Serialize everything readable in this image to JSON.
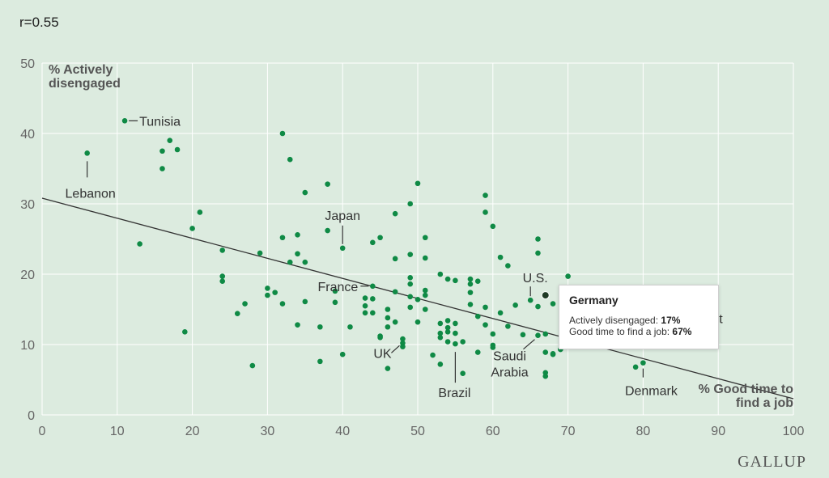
{
  "header": {
    "r_label": "r=0.55"
  },
  "brand": "GALLUP",
  "colors": {
    "background": "#dcebdf",
    "grid": "#ffffff",
    "dot": "#0f8a45",
    "highlight_dot": "#1e3a24",
    "trend": "#333333",
    "text": "#333333",
    "axis_title": "#555555"
  },
  "chart_data": {
    "type": "scatter",
    "xlabel": "% Good time to find a job",
    "ylabel": "% Actively disengaged",
    "xlim": [
      0,
      100
    ],
    "ylim": [
      0,
      50
    ],
    "x_ticks": [
      "0",
      "10",
      "20",
      "30",
      "40",
      "50",
      "60",
      "70",
      "80",
      "90",
      "100"
    ],
    "y_ticks": [
      "0",
      "10",
      "20",
      "30",
      "40",
      "50"
    ],
    "grid": true,
    "trendline": {
      "x": [
        0,
        100
      ],
      "y": [
        30.8,
        2.3
      ]
    },
    "points": [
      [
        6,
        37.2
      ],
      [
        11,
        41.8
      ],
      [
        13,
        24.3
      ],
      [
        16,
        37.5
      ],
      [
        16,
        35
      ],
      [
        17,
        39
      ],
      [
        18,
        37.7
      ],
      [
        19,
        11.8
      ],
      [
        20,
        26.5
      ],
      [
        21,
        28.8
      ],
      [
        24,
        23.4
      ],
      [
        24,
        19.7
      ],
      [
        24,
        19
      ],
      [
        26,
        14.4
      ],
      [
        27,
        15.8
      ],
      [
        28,
        7
      ],
      [
        29,
        23
      ],
      [
        30,
        18
      ],
      [
        30,
        17
      ],
      [
        31,
        17.4
      ],
      [
        32,
        40
      ],
      [
        32,
        25.2
      ],
      [
        32,
        15.8
      ],
      [
        33,
        36.3
      ],
      [
        33,
        21.7
      ],
      [
        34,
        25.6
      ],
      [
        34,
        22.9
      ],
      [
        34,
        12.8
      ],
      [
        35,
        31.6
      ],
      [
        35,
        21.7
      ],
      [
        35,
        16.1
      ],
      [
        37,
        12.5
      ],
      [
        37,
        7.6
      ],
      [
        38,
        32.8
      ],
      [
        38,
        26.2
      ],
      [
        39,
        17.6
      ],
      [
        39,
        16
      ],
      [
        40,
        23.7
      ],
      [
        40,
        8.6
      ],
      [
        41,
        12.5
      ],
      [
        43,
        16.6
      ],
      [
        43,
        15.5
      ],
      [
        43,
        14.5
      ],
      [
        44,
        24.5
      ],
      [
        44,
        18.3
      ],
      [
        44,
        16.5
      ],
      [
        44,
        14.5
      ],
      [
        45,
        25.2
      ],
      [
        45,
        11.2
      ],
      [
        45,
        11
      ],
      [
        46,
        15
      ],
      [
        46,
        13.8
      ],
      [
        46,
        12.5
      ],
      [
        46,
        6.6
      ],
      [
        47,
        28.6
      ],
      [
        47,
        22.2
      ],
      [
        47,
        17.5
      ],
      [
        47,
        13.2
      ],
      [
        48,
        10.8
      ],
      [
        48,
        10.2
      ],
      [
        48,
        9.7
      ],
      [
        49,
        30
      ],
      [
        49,
        22.8
      ],
      [
        49,
        19.5
      ],
      [
        49,
        18.6
      ],
      [
        49,
        16.8
      ],
      [
        49,
        15.3
      ],
      [
        50,
        32.9
      ],
      [
        50,
        16.4
      ],
      [
        50,
        13.2
      ],
      [
        51,
        25.2
      ],
      [
        51,
        22.3
      ],
      [
        51,
        17.7
      ],
      [
        51,
        17
      ],
      [
        51,
        15
      ],
      [
        52,
        8.5
      ],
      [
        53,
        20
      ],
      [
        53,
        13
      ],
      [
        53,
        11.6
      ],
      [
        53,
        11
      ],
      [
        53,
        7.2
      ],
      [
        54,
        19.3
      ],
      [
        54,
        13.4
      ],
      [
        54,
        12.4
      ],
      [
        54,
        11.8
      ],
      [
        54,
        10.4
      ],
      [
        55,
        19.1
      ],
      [
        55,
        13
      ],
      [
        55,
        11.6
      ],
      [
        55,
        10.1
      ],
      [
        56,
        10.4
      ],
      [
        56,
        5.9
      ],
      [
        57,
        19.3
      ],
      [
        57,
        18.6
      ],
      [
        57,
        17.4
      ],
      [
        57,
        15.7
      ],
      [
        58,
        19
      ],
      [
        58,
        14
      ],
      [
        58,
        8.9
      ],
      [
        59,
        31.2
      ],
      [
        59,
        28.8
      ],
      [
        59,
        15.3
      ],
      [
        59,
        12.8
      ],
      [
        60,
        26.8
      ],
      [
        60,
        11.5
      ],
      [
        60,
        9.9
      ],
      [
        60,
        9.6
      ],
      [
        61,
        22.4
      ],
      [
        61,
        14.5
      ],
      [
        62,
        21.2
      ],
      [
        62,
        12.6
      ],
      [
        63,
        15.6
      ],
      [
        64,
        11.4
      ],
      [
        65,
        16.3
      ],
      [
        66,
        25
      ],
      [
        66,
        23
      ],
      [
        66,
        15.4
      ],
      [
        66,
        11.3
      ],
      [
        67,
        11.5
      ],
      [
        67,
        8.9
      ],
      [
        67,
        6
      ],
      [
        67,
        5.5
      ],
      [
        68,
        15.8
      ],
      [
        68,
        8.7
      ],
      [
        68,
        8.6
      ],
      [
        69,
        9.3
      ],
      [
        70,
        19.7
      ],
      [
        79,
        6.8
      ],
      [
        80,
        7.4
      ]
    ],
    "highlight_point": {
      "label": "Germany",
      "x": 67,
      "y": 17
    },
    "annotations": [
      {
        "text": "Tunisia",
        "x": 11,
        "y": 41.8
      },
      {
        "text": "Lebanon",
        "x": 6,
        "y": 37.2
      },
      {
        "text": "Japan",
        "x": 40,
        "y": 23.7
      },
      {
        "text": "France",
        "x": 44,
        "y": 18.3
      },
      {
        "text": "U.S.",
        "x": 65,
        "y": 16.3
      },
      {
        "text": "UK",
        "x": 48,
        "y": 10.2
      },
      {
        "text": "Saudi",
        "x": 66,
        "y": 11.3
      },
      {
        "text": "Arabia",
        "x": 66,
        "y": 11.3
      },
      {
        "text": "Brazil",
        "x": 55,
        "y": 10.1
      },
      {
        "text": "Denmark",
        "x": 80,
        "y": 7.4
      },
      {
        "text": "ait",
        "x": 78,
        "y": 12
      }
    ],
    "tooltip": {
      "title": "Germany",
      "row1_label": "Actively disengaged:",
      "row1_value": "17%",
      "row2_label": "Good time to find a job:",
      "row2_value": "67%"
    }
  }
}
